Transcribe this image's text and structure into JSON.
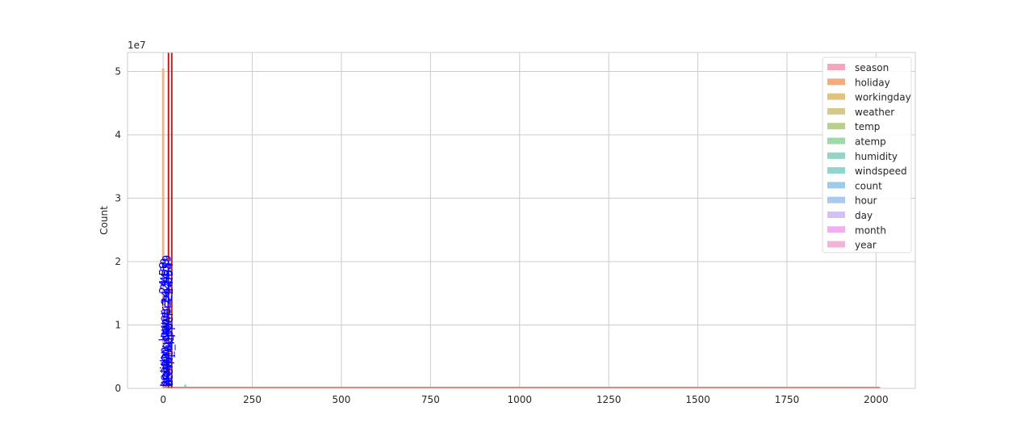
{
  "chart_data": {
    "type": "histogram",
    "ylabel": "Count",
    "y_offset_text": "1e7",
    "xlim": [
      -100,
      2110
    ],
    "ylim": [
      0,
      53000000
    ],
    "x_ticks": [
      0,
      250,
      500,
      750,
      1000,
      1250,
      1500,
      1750,
      2000
    ],
    "y_ticks": [
      0,
      10000000,
      20000000,
      30000000,
      40000000,
      50000000
    ],
    "y_tick_labels": [
      "0",
      "1",
      "2",
      "3",
      "4",
      "5"
    ],
    "grid": true,
    "legend_position": "top-right",
    "series": [
      {
        "name": "season",
        "color": "#f4a6bd",
        "peak_x": 2,
        "peak_y": 2500000
      },
      {
        "name": "holiday",
        "color": "#f0ad7e",
        "peak_x": 0,
        "peak_y": 50500000
      },
      {
        "name": "workingday",
        "color": "#e0c47e",
        "peak_x": 1,
        "peak_y": 7000000
      },
      {
        "name": "weather",
        "color": "#d4c98b",
        "peak_x": 1,
        "peak_y": 5900000
      },
      {
        "name": "temp",
        "color": "#b7d18d",
        "peak_x": 20,
        "peak_y": 1200000
      },
      {
        "name": "atemp",
        "color": "#9ed9a9",
        "peak_x": 24,
        "peak_y": 1100000
      },
      {
        "name": "humidity",
        "color": "#92d4c6",
        "peak_x": 62,
        "peak_y": 600000
      },
      {
        "name": "windspeed",
        "color": "#92d4ce",
        "peak_x": 12,
        "peak_y": 900000
      },
      {
        "name": "count",
        "color": "#9dcbe9",
        "peak_x": 150,
        "peak_y": 100000
      },
      {
        "name": "hour",
        "color": "#a9c9ef",
        "peak_x": 12,
        "peak_y": 500000
      },
      {
        "name": "day",
        "color": "#d4c1f2",
        "peak_x": 10,
        "peak_y": 400000
      },
      {
        "name": "month",
        "color": "#f2aef0",
        "peak_x": 6,
        "peak_y": 600000
      },
      {
        "name": "year",
        "color": "#f4b3d6",
        "peak_x": 2011,
        "peak_y": 100000
      }
    ],
    "vertical_lines": [
      {
        "x": 15,
        "color": "#b22222"
      },
      {
        "x": 24,
        "color": "#b22222"
      }
    ],
    "annotations": [
      {
        "x": 3,
        "y": 0,
        "text": "season_lower = 24.59"
      },
      {
        "x": 6,
        "y": 0,
        "text": "holiday_upper = 24.59"
      },
      {
        "x": 9,
        "y": 0,
        "text": "workingday = 24.54"
      },
      {
        "x": 12,
        "y": 0,
        "text": "weather_lower = 24.59"
      },
      {
        "x": 15,
        "y": 0,
        "text": "temp_upper = 24.59"
      },
      {
        "x": 18,
        "y": 0,
        "text": "atemp_upper = 24.54"
      }
    ]
  }
}
